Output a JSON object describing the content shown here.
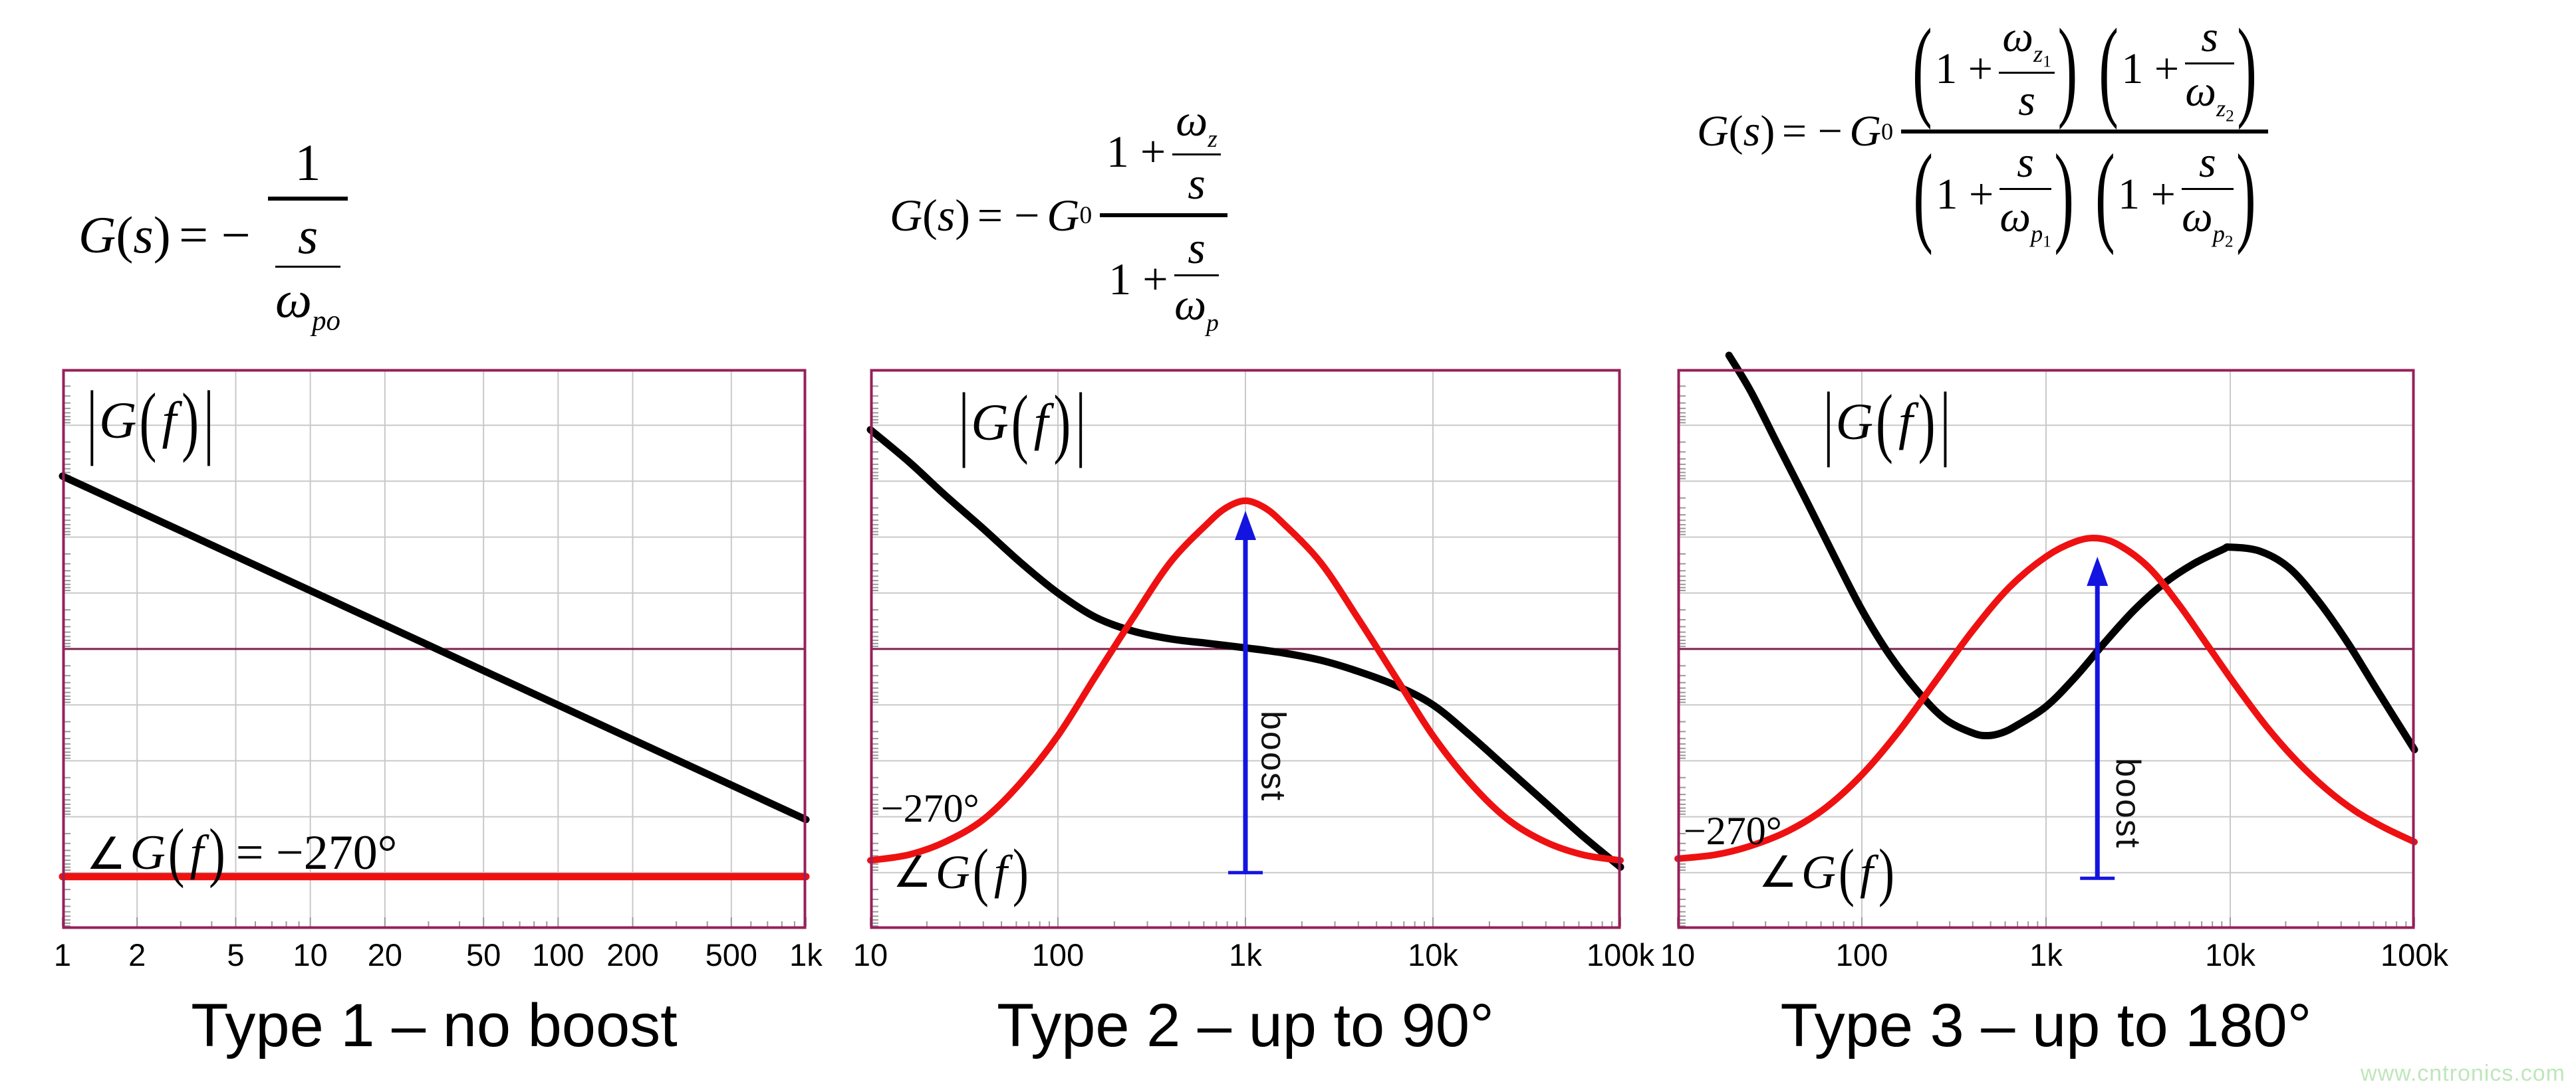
{
  "page": {
    "background": "#ffffff"
  },
  "watermark": "www.cntronics.com",
  "captions": [
    "Type 1 – no boost",
    "Type 2 – up to 90°",
    "Type 3 – up to 180°"
  ],
  "glyphs": {
    "bar": "|",
    "G": "G",
    "s": "s",
    "f": "f",
    "lp": "(",
    "rp": ")",
    "eqminus": "= −",
    "one": "1",
    "oneplus": "1 +",
    "omega": "ω",
    "zero": "0",
    "angle": "∠",
    "eq270": "= −270°",
    "deg270": "−270°",
    "boost": "boost"
  },
  "subs": {
    "po": "po",
    "z": "z",
    "p": "p",
    "one": "1",
    "two": "2"
  },
  "formulas": {
    "type1": "G(s) = −1/(s/ω_po)",
    "type2": "G(s) = −G0·(1 + ω_z/s)/(1 + s/ω_p)",
    "type3": "G(s) = −G0·(1 + ω_z1/s)(1 + s/ω_z2)/((1 + s/ω_p1)(1 + s/ω_p2))"
  },
  "colors": {
    "frame": "#97205a",
    "zero_line": "#7c2150",
    "grid": "#c9c9c9",
    "tick": "#9a9a9a",
    "magnitude": "#000000",
    "phase": "#ee1111",
    "arrow": "#1414e0",
    "watermark": "#bfe6ba"
  },
  "chart_data": [
    {
      "type": "line",
      "title": "Type 1 – no boost",
      "x_scale": "log",
      "x_range": [
        1,
        1000
      ],
      "xlabel": "",
      "ylabel": "",
      "y_axis": "unlabeled; horizontal gridlines every 10% of height; maroon mid line = 0 dB crossover reference",
      "zero_line_frac": 0.5,
      "x_ticks": [
        {
          "label": "1",
          "hz": 1
        },
        {
          "label": "2",
          "hz": 2
        },
        {
          "label": "5",
          "hz": 5
        },
        {
          "label": "10",
          "hz": 10
        },
        {
          "label": "20",
          "hz": 20
        },
        {
          "label": "50",
          "hz": 50
        },
        {
          "label": "100",
          "hz": 100
        },
        {
          "label": "200",
          "hz": 200
        },
        {
          "label": "500",
          "hz": 500
        },
        {
          "label": "1k",
          "hz": 1000
        }
      ],
      "grid": {
        "h_fracs": [
          0.1,
          0.2,
          0.3,
          0.4,
          0.6,
          0.7,
          0.8,
          0.9
        ],
        "v_lines_hz": [
          2,
          5,
          10,
          20,
          50,
          100,
          200,
          500
        ],
        "minor_ticks_hz": [
          3,
          4,
          6,
          7,
          8,
          9,
          30,
          40,
          60,
          70,
          80,
          90,
          300,
          400,
          600,
          700,
          800,
          900
        ]
      },
      "series": [
        {
          "name": "magnitude",
          "label": "|G(f)|",
          "color": "#000000",
          "stroke_width": 11,
          "points": [
            [
              1,
              0.191
            ],
            [
              1000,
              0.805
            ]
          ]
        },
        {
          "name": "phase",
          "label": "∠G(f) = −270°",
          "color": "#ee1111",
          "stroke_width": 11,
          "points": [
            [
              1,
              0.907
            ],
            [
              1000,
              0.907
            ]
          ]
        }
      ],
      "annotations": {
        "mag": "|G(f)|",
        "phase_eq": "∠G(f) = −270°"
      }
    },
    {
      "type": "line",
      "title": "Type 2 – up to 90°",
      "x_scale": "log",
      "x_range": [
        10,
        100000
      ],
      "xlabel": "",
      "ylabel": "",
      "y_axis": "unlabeled; horizontal gridlines every 10% of height; maroon mid line = 0 dB crossover reference",
      "zero_line_frac": 0.5,
      "x_ticks": [
        {
          "label": "10",
          "hz": 10
        },
        {
          "label": "100",
          "hz": 100
        },
        {
          "label": "1k",
          "hz": 1000
        },
        {
          "label": "10k",
          "hz": 10000
        },
        {
          "label": "100k",
          "hz": 100000
        }
      ],
      "grid": {
        "h_fracs": [
          0.1,
          0.2,
          0.3,
          0.4,
          0.6,
          0.7,
          0.8,
          0.9
        ],
        "v_lines_hz": [
          100,
          1000,
          10000
        ],
        "minor_ticks_hz": [
          20,
          30,
          40,
          50,
          60,
          70,
          80,
          90,
          200,
          300,
          400,
          500,
          600,
          700,
          800,
          900,
          2000,
          3000,
          4000,
          5000,
          6000,
          7000,
          8000,
          9000,
          20000,
          30000,
          40000,
          50000,
          60000,
          70000,
          80000,
          90000
        ]
      },
      "series": [
        {
          "name": "magnitude",
          "label": "|G(f)|",
          "color": "#000000",
          "stroke_width": 11,
          "points": [
            [
              10,
              0.108
            ],
            [
              16,
              0.165
            ],
            [
              25,
              0.225
            ],
            [
              40,
              0.285
            ],
            [
              63,
              0.345
            ],
            [
              100,
              0.4
            ],
            [
              158,
              0.443
            ],
            [
              251,
              0.468
            ],
            [
              398,
              0.482
            ],
            [
              631,
              0.49
            ],
            [
              1000,
              0.498
            ],
            [
              1585,
              0.507
            ],
            [
              2512,
              0.52
            ],
            [
              3981,
              0.54
            ],
            [
              6310,
              0.565
            ],
            [
              10000,
              0.6
            ],
            [
              15849,
              0.655
            ],
            [
              25119,
              0.715
            ],
            [
              39811,
              0.775
            ],
            [
              63096,
              0.835
            ],
            [
              100000,
              0.89
            ]
          ]
        },
        {
          "name": "phase",
          "label": "∠G(f)",
          "color": "#ee1111",
          "stroke_width": 10,
          "points": [
            [
              10,
              0.878
            ],
            [
              16,
              0.868
            ],
            [
              25,
              0.845
            ],
            [
              40,
              0.805
            ],
            [
              63,
              0.74
            ],
            [
              100,
              0.655
            ],
            [
              158,
              0.55
            ],
            [
              251,
              0.445
            ],
            [
              398,
              0.345
            ],
            [
              631,
              0.275
            ],
            [
              794,
              0.247
            ],
            [
              1000,
              0.235
            ],
            [
              1259,
              0.247
            ],
            [
              1585,
              0.275
            ],
            [
              2512,
              0.345
            ],
            [
              3981,
              0.445
            ],
            [
              6310,
              0.55
            ],
            [
              10000,
              0.655
            ],
            [
              15849,
              0.74
            ],
            [
              25119,
              0.805
            ],
            [
              39811,
              0.845
            ],
            [
              63096,
              0.868
            ],
            [
              100000,
              0.878
            ]
          ]
        }
      ],
      "arrow": {
        "x_hz": 1000,
        "tip_frac": 0.253,
        "base_frac": 0.9
      },
      "annotations": {
        "mag": "|G(f)|",
        "deg": "−270°",
        "angle": "∠G(f)",
        "boost": "boost"
      }
    },
    {
      "type": "line",
      "title": "Type 3 – up to 180°",
      "x_scale": "log",
      "x_range": [
        10,
        100000
      ],
      "xlabel": "",
      "ylabel": "",
      "y_axis": "unlabeled; horizontal gridlines every 10% of height; maroon mid line = 0 dB crossover reference",
      "zero_line_frac": 0.5,
      "x_ticks": [
        {
          "label": "10",
          "hz": 10
        },
        {
          "label": "100",
          "hz": 100
        },
        {
          "label": "1k",
          "hz": 1000
        },
        {
          "label": "10k",
          "hz": 10000
        },
        {
          "label": "100k",
          "hz": 100000
        }
      ],
      "grid": {
        "h_fracs": [
          0.1,
          0.2,
          0.3,
          0.4,
          0.6,
          0.7,
          0.8,
          0.9
        ],
        "v_lines_hz": [
          100,
          1000,
          10000
        ],
        "minor_ticks_hz": [
          20,
          30,
          40,
          50,
          60,
          70,
          80,
          90,
          200,
          300,
          400,
          500,
          600,
          700,
          800,
          900,
          2000,
          3000,
          4000,
          5000,
          6000,
          7000,
          8000,
          9000,
          20000,
          30000,
          40000,
          50000,
          60000,
          70000,
          80000,
          90000
        ]
      },
      "series": [
        {
          "name": "magnitude",
          "label": "|G(f)|",
          "color": "#000000",
          "stroke_width": 11,
          "points": [
            [
              19,
              -0.025
            ],
            [
              25,
              0.04
            ],
            [
              35,
              0.135
            ],
            [
              50,
              0.235
            ],
            [
              71,
              0.335
            ],
            [
              100,
              0.43
            ],
            [
              141,
              0.51
            ],
            [
              200,
              0.575
            ],
            [
              282,
              0.625
            ],
            [
              398,
              0.65
            ],
            [
              479,
              0.655
            ],
            [
              575,
              0.65
            ],
            [
              691,
              0.637
            ],
            [
              1000,
              0.603
            ],
            [
              1445,
              0.55
            ],
            [
              2089,
              0.488
            ],
            [
              3020,
              0.43
            ],
            [
              4365,
              0.383
            ],
            [
              6310,
              0.348
            ],
            [
              9120,
              0.322
            ],
            [
              10000,
              0.318
            ],
            [
              14454,
              0.325
            ],
            [
              20893,
              0.355
            ],
            [
              30200,
              0.415
            ],
            [
              43652,
              0.49
            ],
            [
              63096,
              0.575
            ],
            [
              100000,
              0.68
            ]
          ]
        },
        {
          "name": "phase",
          "label": "∠G(f)",
          "color": "#ee1111",
          "stroke_width": 10,
          "points": [
            [
              10,
              0.875
            ],
            [
              16,
              0.868
            ],
            [
              25,
              0.852
            ],
            [
              40,
              0.825
            ],
            [
              63,
              0.785
            ],
            [
              100,
              0.725
            ],
            [
              158,
              0.648
            ],
            [
              251,
              0.558
            ],
            [
              398,
              0.468
            ],
            [
              631,
              0.39
            ],
            [
              1000,
              0.335
            ],
            [
              1445,
              0.308
            ],
            [
              1905,
              0.302
            ],
            [
              2512,
              0.315
            ],
            [
              3631,
              0.355
            ],
            [
              5248,
              0.42
            ],
            [
              7586,
              0.495
            ],
            [
              10965,
              0.57
            ],
            [
              15849,
              0.64
            ],
            [
              22909,
              0.7
            ],
            [
              33113,
              0.75
            ],
            [
              47863,
              0.79
            ],
            [
              69183,
              0.82
            ],
            [
              100000,
              0.845
            ]
          ]
        }
      ],
      "arrow": {
        "x_hz": 1900,
        "tip_frac": 0.335,
        "base_frac": 0.91
      },
      "annotations": {
        "mag": "|G(f)|",
        "deg": "−270°",
        "angle": "∠G(f)",
        "boost": "boost"
      }
    }
  ]
}
